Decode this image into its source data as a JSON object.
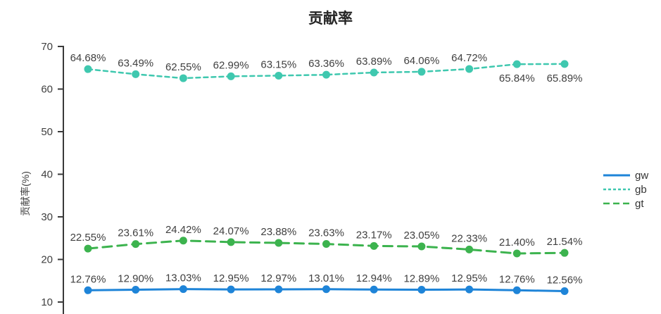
{
  "chart_data": {
    "type": "line",
    "title": "贡献率",
    "xlabel": "",
    "ylabel": "贡献率(%)",
    "ylim": [
      10,
      70
    ],
    "yticks": [
      10,
      20,
      30,
      40,
      50,
      60,
      70
    ],
    "grid": false,
    "legend_position": "center-right",
    "axis_color": "#3a3a3a",
    "label_color": "#404040",
    "series": [
      {
        "name": "gw",
        "color": "#1E84D8",
        "line_style": "solid",
        "values": [
          12.76,
          12.9,
          13.03,
          12.95,
          12.97,
          13.01,
          12.94,
          12.89,
          12.95,
          12.76,
          12.56
        ],
        "labels": [
          "12.76%",
          "12.90%",
          "13.03%",
          "12.95%",
          "12.97%",
          "13.01%",
          "12.94%",
          "12.89%",
          "12.95%",
          "12.76%",
          "12.56%"
        ],
        "labels_below": []
      },
      {
        "name": "gb",
        "color": "#3FC8AF",
        "line_style": "dashed",
        "values": [
          64.68,
          63.49,
          62.55,
          62.99,
          63.15,
          63.36,
          63.89,
          64.06,
          64.72,
          65.84,
          65.89
        ],
        "labels": [
          "64.68%",
          "63.49%",
          "62.55%",
          "62.99%",
          "63.15%",
          "63.36%",
          "63.89%",
          "64.06%",
          "64.72%",
          "65.84%",
          "65.89%"
        ],
        "labels_below": [
          9,
          10
        ]
      },
      {
        "name": "gt",
        "color": "#3CB34E",
        "line_style": "long-dash",
        "values": [
          22.55,
          23.61,
          24.42,
          24.07,
          23.88,
          23.63,
          23.17,
          23.05,
          22.33,
          21.4,
          21.54
        ],
        "labels": [
          "22.55%",
          "23.61%",
          "24.42%",
          "24.07%",
          "23.88%",
          "23.63%",
          "23.17%",
          "23.05%",
          "22.33%",
          "21.40%",
          "21.54%"
        ]
      }
    ],
    "legend": [
      "gw",
      "gb",
      "gt"
    ]
  }
}
